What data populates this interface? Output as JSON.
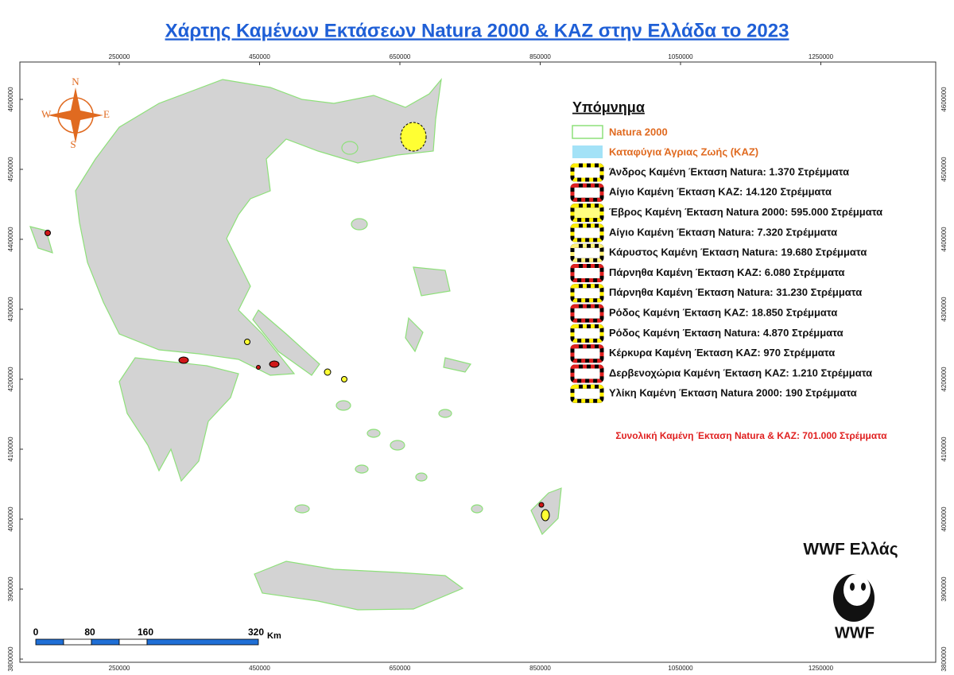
{
  "title": "Χάρτης Καμένων Εκτάσεων Natura 2000 & ΚΑΖ στην Ελλάδα το 2023",
  "x_ticks": [
    250000,
    450000,
    650000,
    850000,
    1050000,
    1250000
  ],
  "y_ticks": [
    4600000,
    4500000,
    4400000,
    4300000,
    4200000,
    4100000,
    4000000,
    3900000,
    3800000
  ],
  "compass": {
    "n": "N",
    "e": "E",
    "s": "S",
    "w": "W"
  },
  "legend": {
    "title": "Υπόμνημα",
    "natura": "Natura 2000",
    "kaz": "Καταφύγια Άγριας Ζωής (ΚΑΖ)",
    "items": [
      {
        "label": "Άνδρος Καμένη Έκταση Natura: 1.370 Στρέμματα",
        "color": "#ffee00",
        "fill": "#ffffff"
      },
      {
        "label": "Αίγιο Καμένη Έκταση ΚΑΖ: 14.120 Στρέμματα",
        "color": "#e02020",
        "fill": "#ffffff"
      },
      {
        "label": "Έβρος Καμένη Έκταση Natura 2000: 595.000 Στρέμματα",
        "color": "#ffee00",
        "fill": "#ffff80"
      },
      {
        "label": "Αίγιο Καμένη Έκταση Natura: 7.320 Στρέμματα",
        "color": "#ffee00",
        "fill": "#ffffff"
      },
      {
        "label": "Κάρυστος Καμένη Έκταση Natura: 19.680 Στρέμματα",
        "color": "#fff176",
        "fill": "#ffffff"
      },
      {
        "label": "Πάρνηθα Καμένη Έκταση ΚΑΖ: 6.080 Στρέμματα",
        "color": "#e02020",
        "fill": "#ffffff"
      },
      {
        "label": "Πάρνηθα Καμένη Έκταση Natura: 31.230 Στρέμματα",
        "color": "#ffee00",
        "fill": "#ffffff"
      },
      {
        "label": "Ρόδος Καμένη Έκταση ΚΑΖ: 18.850 Στρέμματα",
        "color": "#e02020",
        "fill": "#ffffff"
      },
      {
        "label": "Ρόδος Καμένη Έκταση Natura: 4.870 Στρέμματα",
        "color": "#ffee00",
        "fill": "#ffffff"
      },
      {
        "label": "Κέρκυρα Καμένη Έκταση ΚΑΖ: 970 Στρέμματα",
        "color": "#e02020",
        "fill": "#ffffff"
      },
      {
        "label": "Δερβενοχώρια Καμένη Έκταση ΚΑΖ: 1.210 Στρέμματα",
        "color": "#e02020",
        "fill": "#ffffff"
      },
      {
        "label": "Υλίκη Καμένη Έκταση Natura 2000: 190 Στρέμματα",
        "color": "#ffee00",
        "fill": "#ffffff"
      }
    ],
    "total": "Συνολική Καμένη Έκταση Natura & ΚΑΖ: 701.000 Στρέμματα"
  },
  "scale_bar": {
    "labels": [
      "0",
      "80",
      "160",
      "320"
    ],
    "unit": "Km"
  },
  "logo": {
    "title": "WWF Ελλάς",
    "text": "WWF"
  }
}
